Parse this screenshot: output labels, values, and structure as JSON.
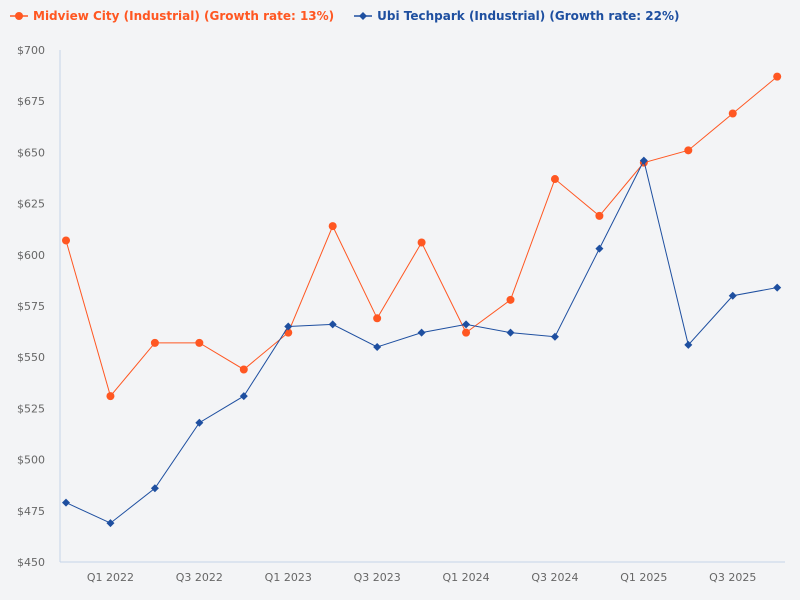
{
  "chart_data": {
    "type": "line",
    "title": "",
    "xlabel": "",
    "ylabel": "",
    "ylim": [
      450,
      700
    ],
    "yticks": [
      "$450",
      "$475",
      "$500",
      "$525",
      "$550",
      "$575",
      "$600",
      "$625",
      "$650",
      "$675",
      "$700"
    ],
    "ytick_values": [
      450,
      475,
      500,
      525,
      550,
      575,
      600,
      625,
      650,
      675,
      700
    ],
    "categories": [
      "Q4 2021",
      "Q1 2022",
      "Q2 2022",
      "Q3 2022",
      "Q4 2022",
      "Q1 2023",
      "Q2 2023",
      "Q3 2023",
      "Q4 2023",
      "Q1 2024",
      "Q2 2024",
      "Q3 2024",
      "Q4 2024",
      "Q1 2025",
      "Q2 2025",
      "Q3 2025",
      "Q4 2025"
    ],
    "xtick_labels": [
      "Q1 2022",
      "Q3 2022",
      "Q1 2023",
      "Q3 2023",
      "Q1 2024",
      "Q3 2024",
      "Q1 2025",
      "Q3 2025"
    ],
    "grid": false,
    "legend_position": "top-left",
    "series": [
      {
        "name": "Midview City (Industrial) (Growth rate: 13%)",
        "color": "#ff5722",
        "marker": "circle",
        "values": [
          607,
          531,
          557,
          557,
          544,
          562,
          614,
          569,
          606,
          562,
          578,
          637,
          619,
          645,
          651,
          669,
          687
        ]
      },
      {
        "name": "Ubi Techpark (Industrial) (Growth rate: 22%)",
        "color": "#1e4fa0",
        "marker": "diamond",
        "values": [
          479,
          469,
          486,
          518,
          531,
          565,
          566,
          555,
          562,
          566,
          562,
          560,
          603,
          646,
          556,
          580,
          584
        ]
      }
    ]
  }
}
